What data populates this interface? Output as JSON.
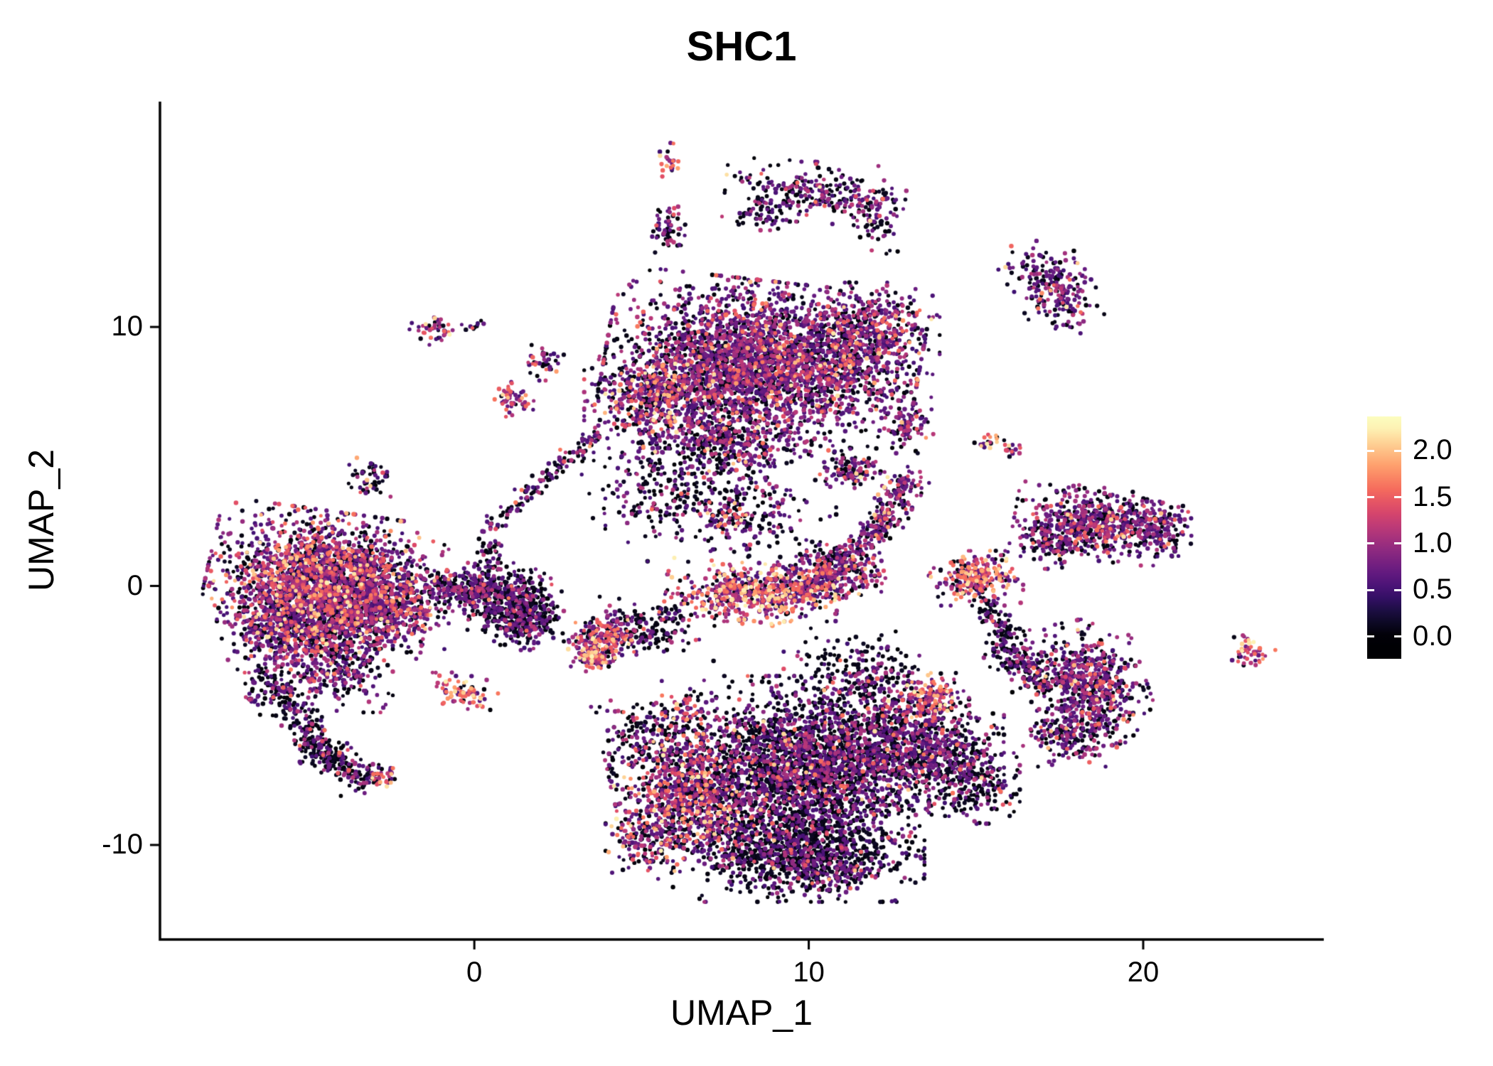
{
  "chart_data": {
    "type": "scatter",
    "title": "SHC1",
    "xlabel": "UMAP_1",
    "ylabel": "UMAP_2",
    "xlim": [
      -9.4,
      25.4
    ],
    "ylim": [
      -13.65,
      18.7
    ],
    "x_ticks": {
      "values": [
        0,
        10,
        20
      ],
      "labels": [
        "0",
        "10",
        "20"
      ]
    },
    "y_ticks": {
      "values": [
        -10,
        0,
        10
      ],
      "labels": [
        "-10",
        "0",
        "10"
      ]
    },
    "grid": false,
    "background": "#ffffff",
    "axis_color": "#000000",
    "legend": {
      "position": "right",
      "tick_labels": [
        "2.0",
        "1.5",
        "1.0",
        "0.5",
        "0.0"
      ],
      "tick_values": [
        2.0,
        1.5,
        1.0,
        0.5,
        0.0
      ],
      "bar_value_min": -0.24,
      "bar_value_max": 2.37,
      "data_max": 2.3
    },
    "colormap": {
      "name": "magma",
      "stops": [
        [
          0.0,
          "#000004"
        ],
        [
          0.1,
          "#140e36"
        ],
        [
          0.2,
          "#3b0f70"
        ],
        [
          0.3,
          "#641a80"
        ],
        [
          0.4,
          "#8c2981"
        ],
        [
          0.5,
          "#b73779"
        ],
        [
          0.6,
          "#de4968"
        ],
        [
          0.7,
          "#f7705c"
        ],
        [
          0.8,
          "#fe9f6d"
        ],
        [
          0.9,
          "#fecf92"
        ],
        [
          1.0,
          "#fcfdbf"
        ]
      ]
    },
    "profile_bins": [
      0.05,
      0.62,
      1.05,
      1.5,
      2.0
    ],
    "expression_profiles": {
      "vdark": [
        0.68,
        0.25,
        0.06,
        0.01,
        0.0
      ],
      "darker": [
        0.55,
        0.3,
        0.11,
        0.03,
        0.01
      ],
      "dark": [
        0.6,
        0.28,
        0.09,
        0.03,
        0.0
      ],
      "darkpurple": [
        0.45,
        0.35,
        0.15,
        0.04,
        0.01
      ],
      "purple": [
        0.3,
        0.4,
        0.22,
        0.06,
        0.02
      ],
      "mixed": [
        0.27,
        0.32,
        0.22,
        0.13,
        0.06
      ],
      "mixed2": [
        0.3,
        0.3,
        0.2,
        0.13,
        0.07
      ],
      "bright": [
        0.15,
        0.22,
        0.25,
        0.23,
        0.15
      ],
      "hot": [
        0.1,
        0.15,
        0.22,
        0.28,
        0.25
      ],
      "hot2": [
        0.1,
        0.12,
        0.18,
        0.25,
        0.35
      ]
    },
    "point_radius": [
      2.5,
      3.3
    ],
    "seed": 1234,
    "clusters": [
      [
        "b",
        -4.6,
        0.2,
        1.45,
        1.15,
        -10,
        2100,
        "mixed"
      ],
      [
        "b",
        -3.0,
        -0.7,
        0.95,
        0.9,
        0,
        650,
        "purple"
      ],
      [
        "b",
        -5.7,
        -1.7,
        0.85,
        0.7,
        0,
        400,
        "purple"
      ],
      [
        "b",
        -4.2,
        -3.0,
        0.75,
        0.8,
        0,
        350,
        "darkpurple"
      ],
      [
        "l",
        -6.3,
        -3.4,
        -4.4,
        -6.6,
        0.32,
        260,
        "dark"
      ],
      [
        "l",
        -4.6,
        -6.2,
        -3.2,
        -7.6,
        0.28,
        150,
        "dark"
      ],
      [
        "b",
        -2.85,
        -7.4,
        0.25,
        0.22,
        0,
        40,
        "bright"
      ],
      [
        "b",
        -6.6,
        -4.4,
        0.15,
        0.12,
        0,
        12,
        "dark"
      ],
      [
        "b",
        -3.15,
        4.2,
        0.3,
        0.35,
        0,
        50,
        "darkpurple"
      ],
      [
        "b",
        -0.4,
        -4.1,
        0.45,
        0.3,
        -20,
        80,
        "hot"
      ],
      [
        "b",
        0.8,
        -0.4,
        0.8,
        0.55,
        0,
        420,
        "dark"
      ],
      [
        "b",
        1.5,
        -1.3,
        0.5,
        0.5,
        0,
        260,
        "dark"
      ],
      [
        "l",
        -1.3,
        0.2,
        0.2,
        -0.3,
        0.25,
        120,
        "darkpurple"
      ],
      [
        "l",
        0.4,
        2.2,
        3.8,
        6.0,
        0.18,
        150,
        "darkpurple"
      ],
      [
        "l",
        0.2,
        -0.2,
        0.5,
        1.8,
        0.2,
        60,
        "dark"
      ],
      [
        "b",
        3.9,
        -2.0,
        0.5,
        0.4,
        20,
        180,
        "bright"
      ],
      [
        "b",
        3.5,
        -2.75,
        0.3,
        0.25,
        0,
        80,
        "hot2"
      ],
      [
        "b",
        5.3,
        -1.6,
        0.8,
        0.55,
        0,
        190,
        "dark"
      ],
      [
        "b",
        6.2,
        -4.8,
        0.25,
        0.35,
        0,
        40,
        "bright"
      ],
      [
        "b",
        8.6,
        8.6,
        2.0,
        1.35,
        -8,
        3000,
        "purple"
      ],
      [
        "b",
        5.4,
        7.2,
        0.9,
        0.8,
        0,
        500,
        "mixed"
      ],
      [
        "b",
        11.8,
        9.6,
        0.9,
        0.9,
        0,
        500,
        "purple"
      ],
      [
        "b",
        12.9,
        6.3,
        0.35,
        0.5,
        0,
        90,
        "purple"
      ],
      [
        "b",
        7.5,
        5.4,
        1.1,
        0.6,
        0,
        350,
        "darkpurple"
      ],
      [
        "b",
        5.5,
        3.8,
        1.0,
        0.9,
        0,
        200,
        "dark"
      ],
      [
        "b",
        7.6,
        2.65,
        0.3,
        0.25,
        0,
        50,
        "bright"
      ],
      [
        "b",
        11.3,
        4.5,
        0.45,
        0.35,
        0,
        110,
        "purple"
      ],
      [
        "b",
        5.8,
        16.4,
        0.18,
        0.3,
        0,
        22,
        "bright"
      ],
      [
        "b",
        5.8,
        13.7,
        0.3,
        0.45,
        0,
        60,
        "darkpurple"
      ],
      [
        "b",
        10.2,
        15.2,
        1.15,
        0.5,
        -5,
        260,
        "darkpurple"
      ],
      [
        "b",
        12.0,
        14.2,
        0.3,
        0.6,
        15,
        70,
        "darkpurple"
      ],
      [
        "b",
        8.8,
        14.4,
        0.4,
        0.3,
        0,
        60,
        "dark"
      ],
      [
        "b",
        17.3,
        11.5,
        0.5,
        0.85,
        25,
        230,
        "purple"
      ],
      [
        "b",
        -1.2,
        9.9,
        0.35,
        0.25,
        0,
        45,
        "mixed"
      ],
      [
        "b",
        0.1,
        10.1,
        0.15,
        0.12,
        0,
        12,
        "dark"
      ],
      [
        "b",
        1.2,
        7.2,
        0.3,
        0.3,
        0,
        50,
        "bright"
      ],
      [
        "b",
        2.1,
        8.6,
        0.25,
        0.3,
        0,
        40,
        "darkpurple"
      ],
      [
        "b",
        8.0,
        2.8,
        1.2,
        1.0,
        0,
        240,
        "dark"
      ],
      [
        "b",
        8.3,
        -0.3,
        1.1,
        0.5,
        -5,
        520,
        "bright"
      ],
      [
        "b",
        10.4,
        0.2,
        0.8,
        0.45,
        10,
        330,
        "mixed"
      ],
      [
        "l",
        11.4,
        1.2,
        12.8,
        3.5,
        0.28,
        210,
        "purple"
      ],
      [
        "b",
        12.9,
        3.9,
        0.3,
        0.3,
        0,
        60,
        "purple"
      ],
      [
        "b",
        10.8,
        0.9,
        0.5,
        0.4,
        0,
        110,
        "darkpurple"
      ],
      [
        "b",
        15.0,
        0.3,
        0.6,
        0.45,
        0,
        260,
        "bright"
      ],
      [
        "l",
        15.2,
        -0.6,
        16.6,
        -3.4,
        0.25,
        130,
        "dark"
      ],
      [
        "b",
        15.4,
        5.6,
        0.2,
        0.18,
        0,
        18,
        "hot2"
      ],
      [
        "b",
        16.1,
        5.3,
        0.18,
        0.15,
        0,
        14,
        "mixed"
      ],
      [
        "b",
        18.6,
        2.4,
        1.05,
        0.6,
        -8,
        600,
        "purple"
      ],
      [
        "b",
        20.5,
        2.2,
        0.4,
        0.45,
        0,
        120,
        "purple"
      ],
      [
        "b",
        17.2,
        1.6,
        0.4,
        0.4,
        0,
        100,
        "darkpurple"
      ],
      [
        "b",
        23.2,
        -2.5,
        0.3,
        0.25,
        -30,
        45,
        "bright"
      ],
      [
        "b",
        18.3,
        -3.8,
        0.75,
        1.05,
        15,
        650,
        "purple"
      ],
      [
        "b",
        17.8,
        -5.8,
        0.6,
        0.5,
        0,
        180,
        "darkpurple"
      ],
      [
        "l",
        15.6,
        -2.2,
        17.2,
        -4.0,
        0.3,
        130,
        "dark"
      ],
      [
        "b",
        6.4,
        -8.0,
        0.95,
        1.25,
        10,
        900,
        "mixed2"
      ],
      [
        "b",
        9.6,
        -7.0,
        1.7,
        1.5,
        0,
        2400,
        "darker"
      ],
      [
        "b",
        9.7,
        -10.2,
        1.6,
        0.85,
        0,
        1000,
        "vdark"
      ],
      [
        "b",
        10.6,
        -11.0,
        0.7,
        0.35,
        0,
        140,
        "darkpurple"
      ],
      [
        "b",
        12.9,
        -6.2,
        1.25,
        1.05,
        0,
        900,
        "darkpurple"
      ],
      [
        "b",
        13.5,
        -4.3,
        0.55,
        0.4,
        0,
        160,
        "bright"
      ],
      [
        "b",
        11.6,
        -3.4,
        1.0,
        0.7,
        0,
        220,
        "dark"
      ],
      [
        "b",
        4.9,
        -5.7,
        0.6,
        0.7,
        0,
        130,
        "dark"
      ],
      [
        "b",
        5.1,
        -9.9,
        0.5,
        0.6,
        0,
        150,
        "mixed2"
      ],
      [
        "b",
        14.9,
        -7.3,
        0.6,
        0.8,
        0,
        250,
        "dark"
      ]
    ]
  }
}
